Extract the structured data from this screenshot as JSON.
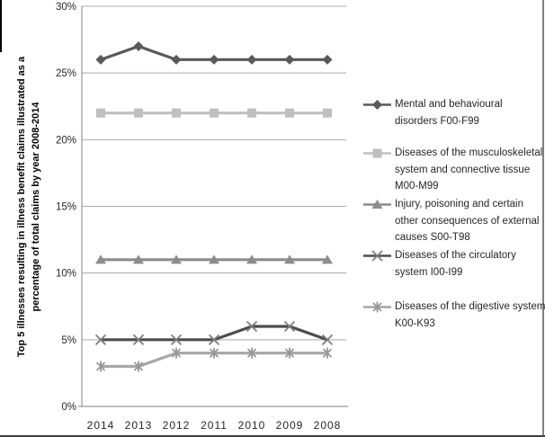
{
  "colors": {
    "gridline": "#a8a8a8",
    "axis": "#808080",
    "tick_text": "#262626",
    "legend_text": "#262626"
  },
  "chart_data": {
    "type": "line",
    "title": "",
    "ylabel_line1": "Top 5 illnesses resulting in illness benefit claims illustrated as a",
    "ylabel_line2": "percentage of total claims by year 2008-2014",
    "categories": [
      "2014",
      "2013",
      "2012",
      "2011",
      "2010",
      "2009",
      "2008"
    ],
    "y_ticks": [
      "0%",
      "5%",
      "10%",
      "15%",
      "20%",
      "25%",
      "30%"
    ],
    "ylim": [
      0,
      30
    ],
    "grid": true,
    "legend_position": "right",
    "series": [
      {
        "name": "Mental and behavioural disorders F00-F99",
        "marker": "diamond",
        "line_color": "#595959",
        "marker_color": "#595959",
        "values": [
          26,
          27,
          26,
          26,
          26,
          26,
          26
        ]
      },
      {
        "name": "Diseases of the musculoskeletal system and connective tissue M00-M99",
        "marker": "square",
        "line_color": "#bfbfbf",
        "marker_color": "#bfbfbf",
        "values": [
          22,
          22,
          22,
          22,
          22,
          22,
          22
        ]
      },
      {
        "name": "Injury, poisoning and certain other consequences of external causes S00-T98",
        "marker": "triangle",
        "line_color": "#8c8c8c",
        "marker_color": "#8c8c8c",
        "values": [
          11,
          11,
          11,
          11,
          11,
          11,
          11
        ]
      },
      {
        "name": "Diseases of the circulatory system I00-I99",
        "marker": "x",
        "line_color": "#4d4d4d",
        "marker_color": "#7f7f7f",
        "values": [
          5,
          5,
          5,
          5,
          6,
          6,
          5
        ]
      },
      {
        "name": "Diseases of the digestive system K00-K93",
        "marker": "asterisk",
        "line_color": "#a6a6a6",
        "marker_color": "#969696",
        "values": [
          3,
          3,
          4,
          4,
          4,
          4,
          4
        ]
      }
    ]
  }
}
